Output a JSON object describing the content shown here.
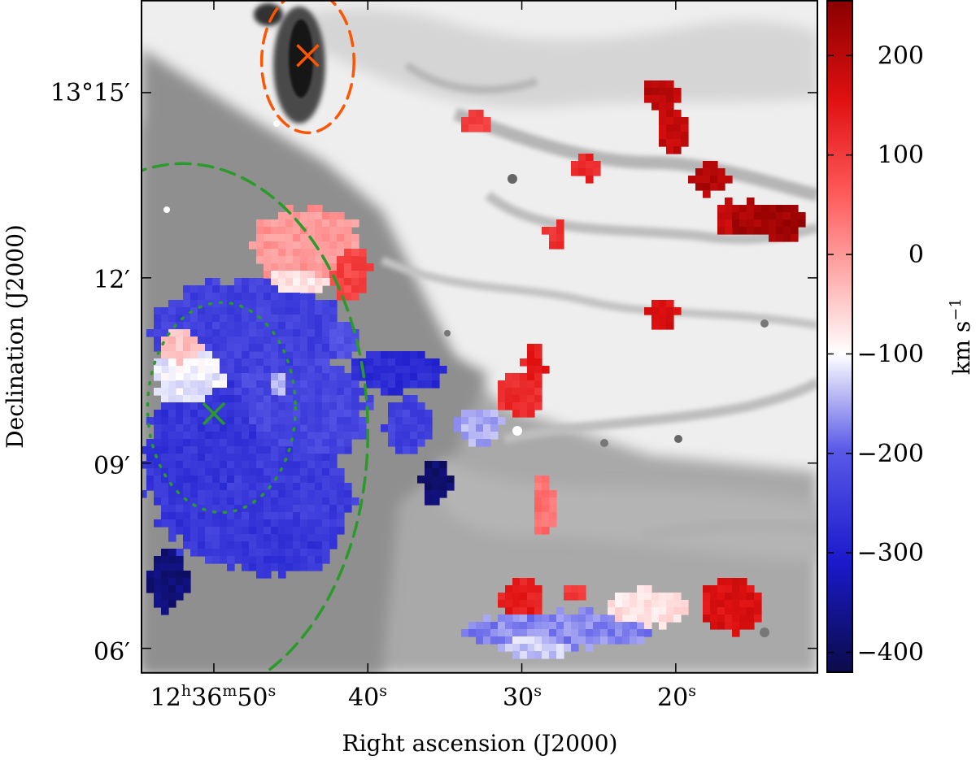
{
  "chart_data": {
    "type": "heatmap",
    "x_axis": {
      "label": "Right ascension (J2000)",
      "ticks": [
        {
          "value_s": 50,
          "h": "12",
          "m": "36",
          "s": "50"
        },
        {
          "value_s": 40,
          "s": "40"
        },
        {
          "value_s": 30,
          "s": "30"
        },
        {
          "value_s": 20,
          "s": "20"
        }
      ],
      "range_s": [
        54.7,
        10.8
      ]
    },
    "y_axis": {
      "label": "Declination (J2000)",
      "ticks": [
        {
          "value_arcmin": 15,
          "label": "13°15′"
        },
        {
          "value_arcmin": 12,
          "label": "12′"
        },
        {
          "value_arcmin": 9,
          "label": "09′"
        },
        {
          "value_arcmin": 6,
          "label": "06′"
        }
      ],
      "range_arcmin": [
        5.6,
        16.5
      ]
    },
    "colorbar": {
      "label": "km s",
      "label_exp": "−1",
      "range": [
        -420,
        255
      ],
      "ticks": [
        200,
        100,
        0,
        -100,
        -200,
        -300,
        -400
      ],
      "tick_labels": [
        "200",
        "100",
        "0",
        "−100",
        "−200",
        "−300",
        "−400"
      ],
      "colormap": [
        "#0b0b4a",
        "#1a1acc",
        "#5a5ae8",
        "#ffffff",
        "#ff5b5b",
        "#e01010",
        "#8a0000"
      ]
    },
    "background": "greyscale HI column density",
    "markers": [
      {
        "shape": "x",
        "color": "#ff5500",
        "ra_s": 43.9,
        "dec_arcmin": 15.6
      },
      {
        "shape": "x",
        "color": "#2a9a2a",
        "ra_s": 50.0,
        "dec_arcmin": 9.8
      }
    ],
    "ellipses": [
      {
        "color": "#ff5500",
        "style": "dashed",
        "ra_s": 43.9,
        "dec_arcmin": 15.5,
        "semi_ra_s": 3.0,
        "semi_dec_arcmin": 1.15
      },
      {
        "color": "#2a9a2a",
        "style": "dashed",
        "ra_s": 52.0,
        "dec_arcmin": 9.5,
        "semi_ra_s": 12.0,
        "semi_dec_arcmin": 4.35
      },
      {
        "color": "#2a9a2a",
        "style": "dotted",
        "ra_s": 49.5,
        "dec_arcmin": 9.9,
        "semi_ra_s": 4.8,
        "semi_dec_arcmin": 1.7
      }
    ],
    "velocity_regions": [
      {
        "ra_s": 49.5,
        "dec_arcmin": 9.0,
        "r_ra_s": 5.0,
        "r_dec_arcmin": 1.6,
        "velocity": -260
      },
      {
        "ra_s": 49.6,
        "dec_arcmin": 9.1,
        "r_ra_s": 2.4,
        "r_dec_arcmin": 0.8,
        "velocity": -410
      },
      {
        "ra_s": 47.5,
        "dec_arcmin": 8.6,
        "r_ra_s": 6.5,
        "r_dec_arcmin": 1.3,
        "velocity": -250
      },
      {
        "ra_s": 45.0,
        "dec_arcmin": 9.9,
        "r_ra_s": 5.0,
        "r_dec_arcmin": 1.0,
        "velocity": -230
      },
      {
        "ra_s": 47.5,
        "dec_arcmin": 11.1,
        "r_ra_s": 6.5,
        "r_dec_arcmin": 0.9,
        "velocity": -240
      },
      {
        "ra_s": 51.8,
        "dec_arcmin": 10.8,
        "r_ra_s": 1.8,
        "r_dec_arcmin": 0.6,
        "velocity": -40
      },
      {
        "ra_s": 51.3,
        "dec_arcmin": 10.5,
        "r_ra_s": 2.6,
        "r_dec_arcmin": 0.7,
        "velocity": -110
      },
      {
        "ra_s": 46.0,
        "dec_arcmin": 7.8,
        "r_ra_s": 4.2,
        "r_dec_arcmin": 0.6,
        "velocity": -260
      },
      {
        "ra_s": 53.0,
        "dec_arcmin": 7.1,
        "r_ra_s": 1.2,
        "r_dec_arcmin": 0.5,
        "velocity": -380
      },
      {
        "ra_s": 45.7,
        "dec_arcmin": 10.2,
        "r_ra_s": 1.8,
        "r_dec_arcmin": 0.4,
        "velocity": -150
      },
      {
        "ra_s": 41.6,
        "dec_arcmin": 11.0,
        "r_ra_s": 1.0,
        "r_dec_arcmin": 0.3,
        "velocity": -210
      },
      {
        "ra_s": 38.2,
        "dec_arcmin": 10.5,
        "r_ra_s": 3.0,
        "r_dec_arcmin": 0.35,
        "velocity": -280
      },
      {
        "ra_s": 37.3,
        "dec_arcmin": 9.6,
        "r_ra_s": 1.6,
        "r_dec_arcmin": 0.45,
        "velocity": -240
      },
      {
        "ra_s": 35.6,
        "dec_arcmin": 8.7,
        "r_ra_s": 1.0,
        "r_dec_arcmin": 0.35,
        "velocity": -390
      },
      {
        "ra_s": 32.8,
        "dec_arcmin": 9.6,
        "r_ra_s": 1.6,
        "r_dec_arcmin": 0.3,
        "velocity": -150
      },
      {
        "ra_s": 43.9,
        "dec_arcmin": 12.5,
        "r_ra_s": 3.6,
        "r_dec_arcmin": 0.65,
        "velocity": 0
      },
      {
        "ra_s": 41.2,
        "dec_arcmin": 12.1,
        "r_ra_s": 1.4,
        "r_dec_arcmin": 0.45,
        "velocity": 90
      },
      {
        "ra_s": 44.6,
        "dec_arcmin": 12.0,
        "r_ra_s": 2.0,
        "r_dec_arcmin": 0.3,
        "velocity": -70
      },
      {
        "ra_s": 32.9,
        "dec_arcmin": 14.5,
        "r_ra_s": 0.9,
        "r_dec_arcmin": 0.2,
        "velocity": 100
      },
      {
        "ra_s": 25.8,
        "dec_arcmin": 13.8,
        "r_ra_s": 0.9,
        "r_dec_arcmin": 0.2,
        "velocity": 130
      },
      {
        "ra_s": 27.8,
        "dec_arcmin": 12.7,
        "r_ra_s": 0.7,
        "r_dec_arcmin": 0.2,
        "velocity": 110
      },
      {
        "ra_s": 20.9,
        "dec_arcmin": 11.4,
        "r_ra_s": 1.0,
        "r_dec_arcmin": 0.25,
        "velocity": 160
      },
      {
        "ra_s": 30.1,
        "dec_arcmin": 10.1,
        "r_ra_s": 1.4,
        "r_dec_arcmin": 0.35,
        "velocity": 120
      },
      {
        "ra_s": 29.2,
        "dec_arcmin": 10.6,
        "r_ra_s": 0.7,
        "r_dec_arcmin": 0.3,
        "velocity": 140
      },
      {
        "ra_s": 28.6,
        "dec_arcmin": 8.3,
        "r_ra_s": 0.8,
        "r_dec_arcmin": 0.45,
        "velocity": 40
      },
      {
        "ra_s": 21.0,
        "dec_arcmin": 15.0,
        "r_ra_s": 1.2,
        "r_dec_arcmin": 0.25,
        "velocity": 200
      },
      {
        "ra_s": 20.2,
        "dec_arcmin": 14.4,
        "r_ra_s": 1.0,
        "r_dec_arcmin": 0.35,
        "velocity": 190
      },
      {
        "ra_s": 17.8,
        "dec_arcmin": 13.6,
        "r_ra_s": 1.3,
        "r_dec_arcmin": 0.25,
        "velocity": 210
      },
      {
        "ra_s": 15.5,
        "dec_arcmin": 13.0,
        "r_ra_s": 1.7,
        "r_dec_arcmin": 0.25,
        "velocity": 220
      },
      {
        "ra_s": 13.0,
        "dec_arcmin": 12.9,
        "r_ra_s": 1.4,
        "r_dec_arcmin": 0.3,
        "velocity": 230
      },
      {
        "ra_s": 16.7,
        "dec_arcmin": 13.0,
        "r_ra_s": 0.8,
        "r_dec_arcmin": 0.25,
        "velocity": 190
      },
      {
        "ra_s": 30.0,
        "dec_arcmin": 6.8,
        "r_ra_s": 1.5,
        "r_dec_arcmin": 0.35,
        "velocity": 140
      },
      {
        "ra_s": 26.6,
        "dec_arcmin": 6.9,
        "r_ra_s": 0.6,
        "r_dec_arcmin": 0.15,
        "velocity": 110
      },
      {
        "ra_s": 16.3,
        "dec_arcmin": 6.7,
        "r_ra_s": 2.1,
        "r_dec_arcmin": 0.45,
        "velocity": 160
      },
      {
        "ra_s": 27.5,
        "dec_arcmin": 6.3,
        "r_ra_s": 6.2,
        "r_dec_arcmin": 0.3,
        "velocity": -170
      },
      {
        "ra_s": 21.9,
        "dec_arcmin": 6.65,
        "r_ra_s": 2.8,
        "r_dec_arcmin": 0.3,
        "velocity": -70
      },
      {
        "ra_s": 29.0,
        "dec_arcmin": 6.05,
        "r_ra_s": 2.5,
        "r_dec_arcmin": 0.2,
        "velocity": -130
      }
    ]
  }
}
